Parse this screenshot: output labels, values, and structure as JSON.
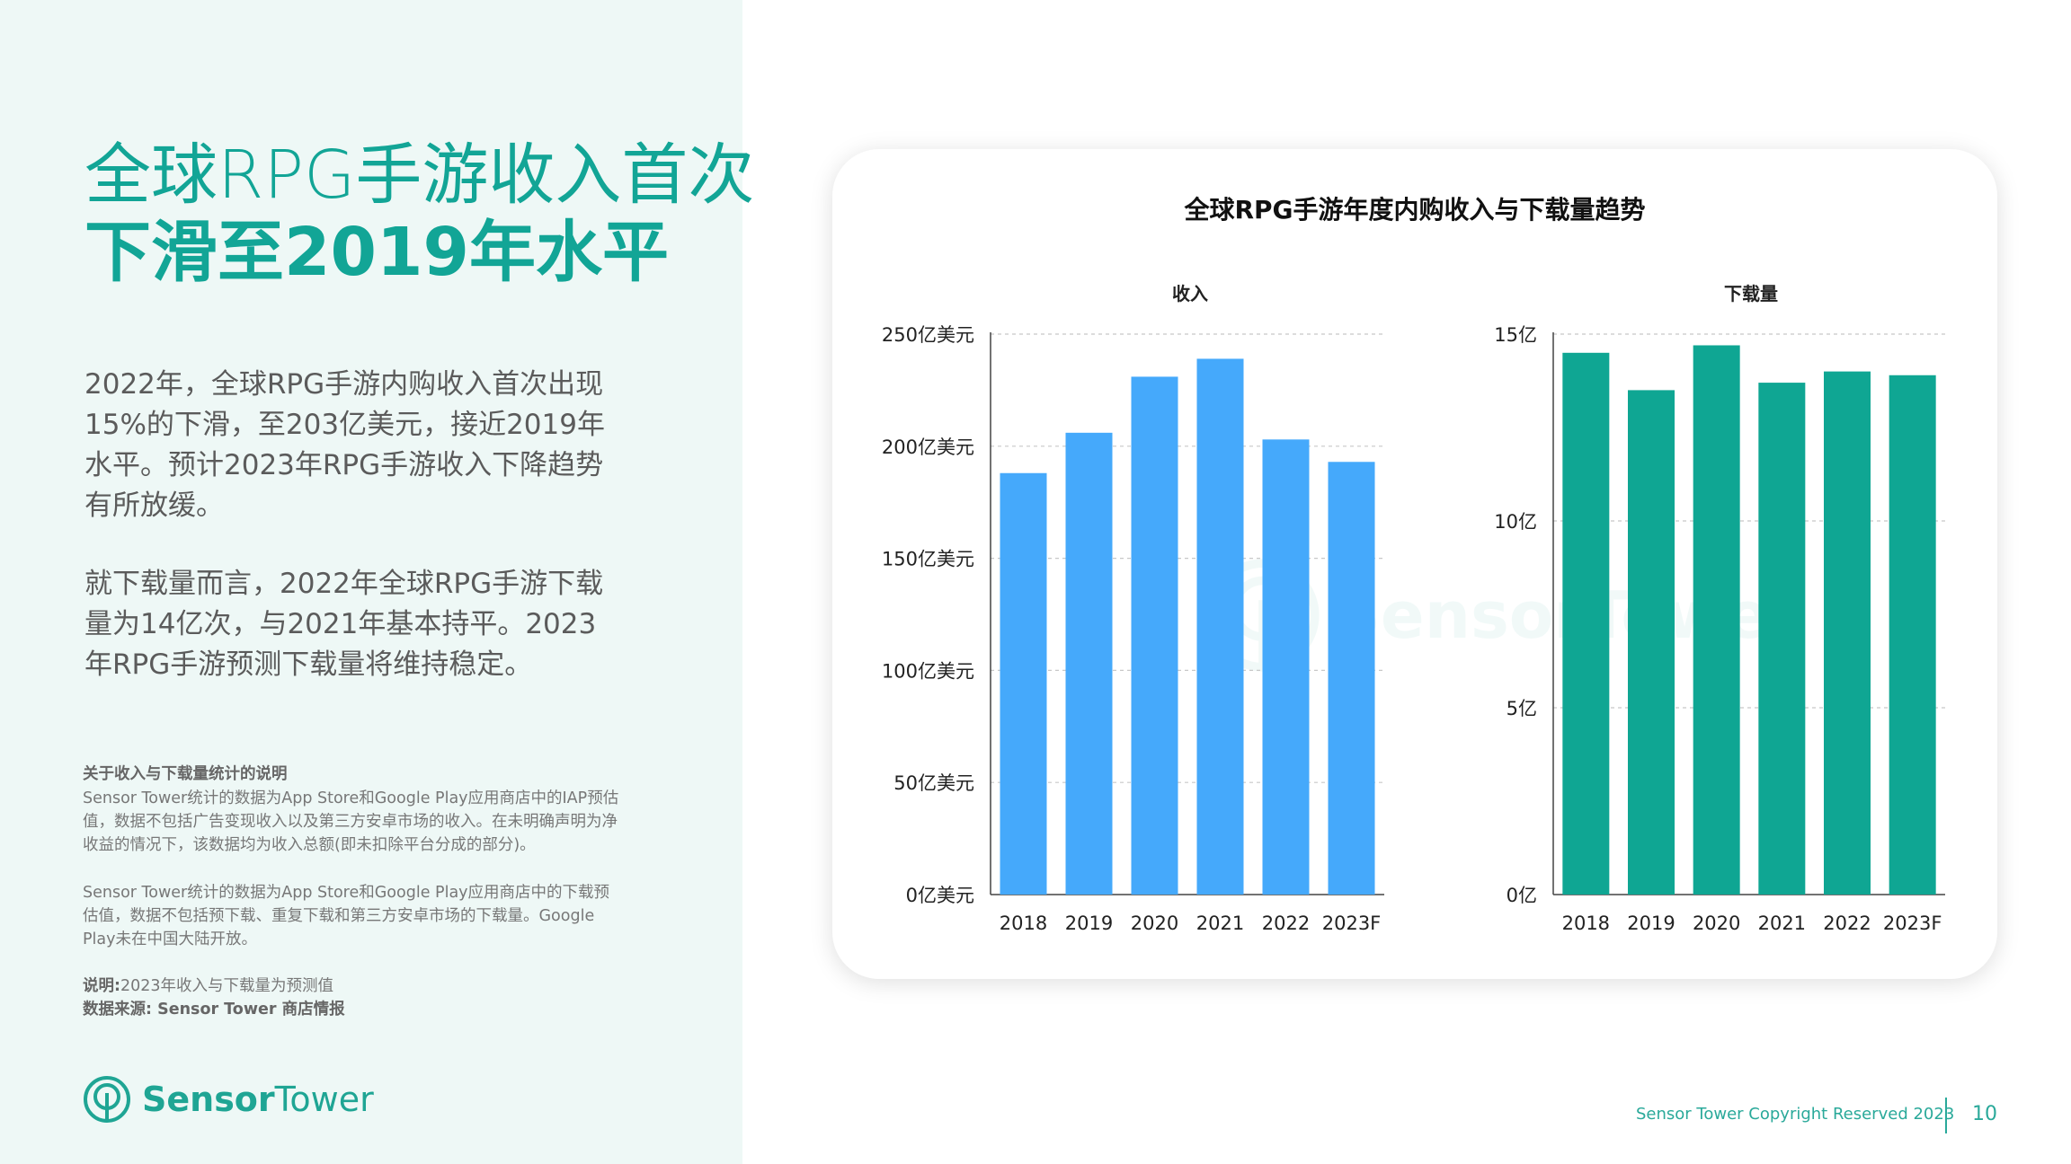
{
  "headline": {
    "line1": "全球RPG手游收入首次",
    "line2": "下滑至2019年水平"
  },
  "paragraphs": [
    "2022年，全球RPG手游内购收入首次出现15%的下滑，至203亿美元，接近2019年水平。预计2023年RPG手游收入下降趋势有所放缓。",
    "就下载量而言，2022年全球RPG手游下载量为14亿次，与2021年基本持平。2023年RPG手游预测下载量将维持稳定。"
  ],
  "notes": {
    "title": "关于收入与下载量统计的说明",
    "p1": "Sensor Tower统计的数据为App Store和Google Play应用商店中的IAP预估值，数据不包括广告变现收入以及第三方安卓市场的收入。在未明确声明为净收益的情况下，该数据均为收入总额(即未扣除平台分成的部分)。",
    "p2": "Sensor Tower统计的数据为App Store和Google Play应用商店中的下载预估值，数据不包括预下载、重复下载和第三方安卓市场的下载量。Google Play未在中国大陆开放。",
    "explanation_label": "说明:",
    "explanation_text": "2023年收入与下载量为预测值",
    "source": "数据来源: Sensor Tower 商店情报"
  },
  "logo": {
    "name_bold": "Sensor",
    "name_regular": "Tower",
    "icon": "sensor-tower-logo-icon"
  },
  "footer": {
    "copyright": "Sensor Tower Copyright Reserved 2023",
    "page_number": "10"
  },
  "colors": {
    "brand": "#12a596",
    "revenue_bar": "#45a9fb",
    "downloads_bar": "#0fa693",
    "left_bg": "#eef8f6"
  },
  "chart_title": "全球RPG手游年度内购收入与下载量趋势",
  "chart_data": [
    {
      "type": "bar",
      "subtitle": "收入",
      "categories": [
        "2018",
        "2019",
        "2020",
        "2021",
        "2022",
        "2023F"
      ],
      "values": [
        188,
        206,
        231,
        239,
        203,
        193
      ],
      "ylim": [
        0,
        250
      ],
      "yticks": [
        0,
        50,
        100,
        150,
        200,
        250
      ],
      "ytick_labels": [
        "0亿美元",
        "50亿美元",
        "100亿美元",
        "150亿美元",
        "200亿美元",
        "250亿美元"
      ],
      "grid": true,
      "color": "#45a9fb"
    },
    {
      "type": "bar",
      "subtitle": "下载量",
      "categories": [
        "2018",
        "2019",
        "2020",
        "2021",
        "2022",
        "2023F"
      ],
      "values": [
        14.5,
        13.5,
        14.7,
        13.7,
        14.0,
        13.9
      ],
      "ylim": [
        0,
        15
      ],
      "yticks": [
        0,
        5,
        10,
        15
      ],
      "ytick_labels": [
        "0亿",
        "5亿",
        "10亿",
        "15亿"
      ],
      "grid": true,
      "color": "#0fa693"
    }
  ]
}
